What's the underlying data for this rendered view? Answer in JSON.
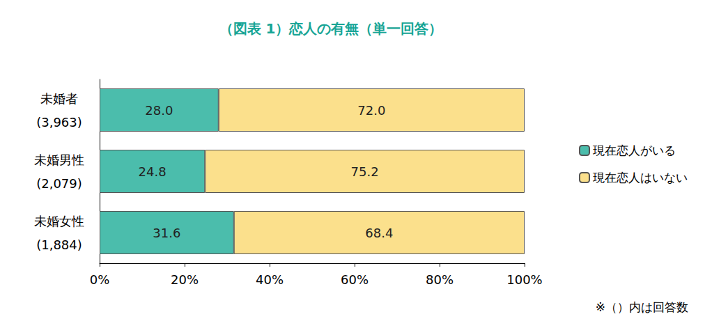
{
  "chart_data": {
    "type": "bar",
    "title": "（図表 1）恋人の有無（単一回答）",
    "annotation": "※（）内は回答数",
    "orientation": "horizontal",
    "stacked": true,
    "data_labels": true,
    "grid": false,
    "legend": "right",
    "categories": [
      "未婚者\n(3,963)",
      "未婚男性\n(2,079)",
      "未婚女性\n(1,884)"
    ],
    "series": [
      {
        "name": "現在恋人がいる",
        "color": "#4bbdac",
        "values": [
          28.0,
          24.8,
          31.6
        ],
        "value_labels": [
          "28.0",
          "24.8",
          "31.6"
        ]
      },
      {
        "name": "現在恋人はいない",
        "color": "#fbe08c",
        "values": [
          72.0,
          75.2,
          68.4
        ],
        "value_labels": [
          "72.0",
          "75.2",
          "68.4"
        ]
      }
    ],
    "xlim": [
      0,
      100
    ],
    "xticks": [
      {
        "value": 0,
        "label": "0%"
      },
      {
        "value": 20,
        "label": "20%"
      },
      {
        "value": 40,
        "label": "40%"
      },
      {
        "value": 60,
        "label": "60%"
      },
      {
        "value": 80,
        "label": "80%"
      },
      {
        "value": 100,
        "label": "100%"
      }
    ]
  }
}
